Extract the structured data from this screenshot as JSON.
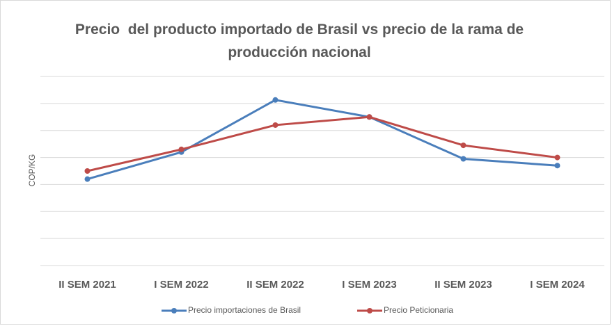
{
  "chart_data": {
    "type": "line",
    "title": "Precio  del producto importado de Brasil vs precio de la rama de producción nacional",
    "y_label": "COP/KG",
    "categories": [
      "II SEM 2021",
      "I SEM 2022",
      "II SEM 2022",
      "I SEM 2023",
      "II SEM 2023",
      "I SEM 2024"
    ],
    "series": [
      {
        "name": "Precio importaciones de Brasil",
        "color": "#4a7ebb",
        "values": [
          3.2,
          4.2,
          6.13,
          5.5,
          3.95,
          3.7
        ]
      },
      {
        "name": "Precio Peticionaria",
        "color": "#be4b48",
        "values": [
          3.5,
          4.3,
          5.2,
          5.5,
          4.45,
          4.0
        ]
      }
    ],
    "ylim": [
      0,
      7
    ],
    "yticks": [
      0,
      1,
      2,
      3,
      4,
      5,
      6,
      7
    ],
    "grid": true,
    "legend": "bottom"
  }
}
